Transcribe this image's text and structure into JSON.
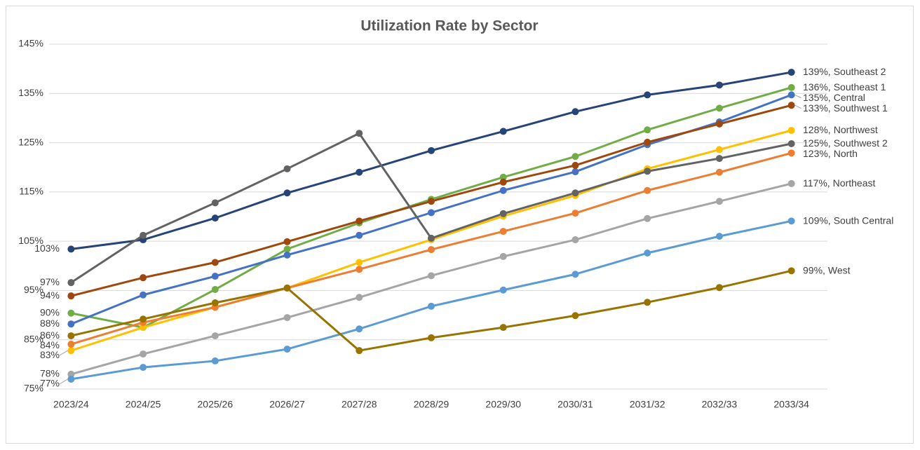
{
  "chart_data": {
    "type": "line",
    "title": "Utilization Rate by Sector",
    "categories": [
      "2023/24",
      "2024/25",
      "2025/26",
      "2026/27",
      "2027/28",
      "2028/29",
      "2029/30",
      "2030/31",
      "2031/32",
      "2032/33",
      "2033/34"
    ],
    "ylim": [
      75,
      145
    ],
    "yticks": [
      {
        "value": 75,
        "label": "75%"
      },
      {
        "value": 85,
        "label": "85%"
      },
      {
        "value": 95,
        "label": "95%"
      },
      {
        "value": 105,
        "label": "105%"
      },
      {
        "value": 115,
        "label": "115%"
      },
      {
        "value": 125,
        "label": "125%"
      },
      {
        "value": 135,
        "label": "135%"
      },
      {
        "value": 145,
        "label": "145%"
      }
    ],
    "grid": true,
    "series": [
      {
        "name": "Southeast 2",
        "color": "#264478",
        "values": [
          103.4,
          105.3,
          109.7,
          114.8,
          119,
          123.4,
          127.3,
          131.3,
          134.7,
          136.7,
          139.3
        ],
        "value_labels": [
          "103%",
          null,
          null,
          null,
          null,
          null,
          null,
          null,
          null,
          null,
          "139%,"
        ]
      },
      {
        "name": "Southeast 1",
        "color": "#70AD47",
        "values": [
          90.4,
          87.5,
          95.2,
          103.4,
          108.7,
          113.5,
          118,
          122.2,
          127.6,
          132,
          136.2
        ],
        "value_labels": [
          "90%",
          null,
          null,
          null,
          null,
          null,
          null,
          null,
          null,
          null,
          "136%,"
        ]
      },
      {
        "name": "Central",
        "color": "#4472C4",
        "values": [
          88.2,
          94.1,
          97.9,
          102.2,
          106.2,
          110.8,
          115.3,
          119.1,
          124.6,
          129.2,
          134.7
        ],
        "value_labels": [
          "88%",
          null,
          null,
          null,
          null,
          null,
          null,
          null,
          null,
          null,
          "135%,"
        ]
      },
      {
        "name": "Southwest 1",
        "color": "#9E480E",
        "values": [
          93.9,
          97.6,
          100.7,
          104.9,
          109.1,
          113.1,
          117,
          120.4,
          125.1,
          128.8,
          132.6
        ],
        "value_labels": [
          "94%",
          null,
          null,
          null,
          null,
          null,
          null,
          null,
          null,
          null,
          "133%,"
        ]
      },
      {
        "name": "Northwest",
        "color": "#FFC000",
        "values": [
          82.8,
          87.5,
          91.6,
          95.5,
          100.7,
          105.3,
          110.1,
          114.3,
          119.7,
          123.6,
          127.5
        ],
        "value_labels": [
          "83%",
          null,
          null,
          null,
          null,
          null,
          null,
          null,
          null,
          null,
          "128%,"
        ]
      },
      {
        "name": "Southwest 2",
        "color": "#636363",
        "values": [
          96.6,
          106.2,
          112.8,
          119.7,
          126.9,
          105.6,
          110.6,
          114.8,
          119.2,
          121.8,
          124.8
        ],
        "value_labels": [
          "97%",
          null,
          null,
          null,
          null,
          null,
          null,
          null,
          null,
          null,
          "125%,"
        ]
      },
      {
        "name": "North",
        "color": "#ED7D31",
        "values": [
          84.1,
          88.5,
          91.6,
          95.5,
          99.3,
          103.3,
          107,
          110.7,
          115.3,
          119,
          122.9
        ],
        "value_labels": [
          "84%",
          null,
          null,
          null,
          null,
          null,
          null,
          null,
          null,
          null,
          "123%,"
        ]
      },
      {
        "name": "Northeast",
        "color": "#A5A5A5",
        "values": [
          78,
          82.1,
          85.8,
          89.5,
          93.6,
          98,
          101.9,
          105.3,
          109.6,
          113.1,
          116.7
        ],
        "value_labels": [
          "78%",
          null,
          null,
          null,
          null,
          null,
          null,
          null,
          null,
          null,
          "117%,"
        ]
      },
      {
        "name": "South Central",
        "color": "#5B9BD5",
        "values": [
          77,
          79.4,
          80.7,
          83.1,
          87.2,
          91.8,
          95.1,
          98.3,
          102.6,
          106,
          109.1
        ],
        "value_labels": [
          "77%",
          null,
          null,
          null,
          null,
          null,
          null,
          null,
          null,
          null,
          "109%,"
        ]
      },
      {
        "name": "West",
        "color": "#997300",
        "values": [
          85.8,
          89.2,
          92.5,
          95.5,
          82.8,
          85.4,
          87.5,
          89.9,
          92.6,
          95.6,
          99
        ],
        "value_labels": [
          "86%",
          null,
          null,
          null,
          null,
          null,
          null,
          null,
          null,
          null,
          "99%,"
        ]
      }
    ]
  }
}
